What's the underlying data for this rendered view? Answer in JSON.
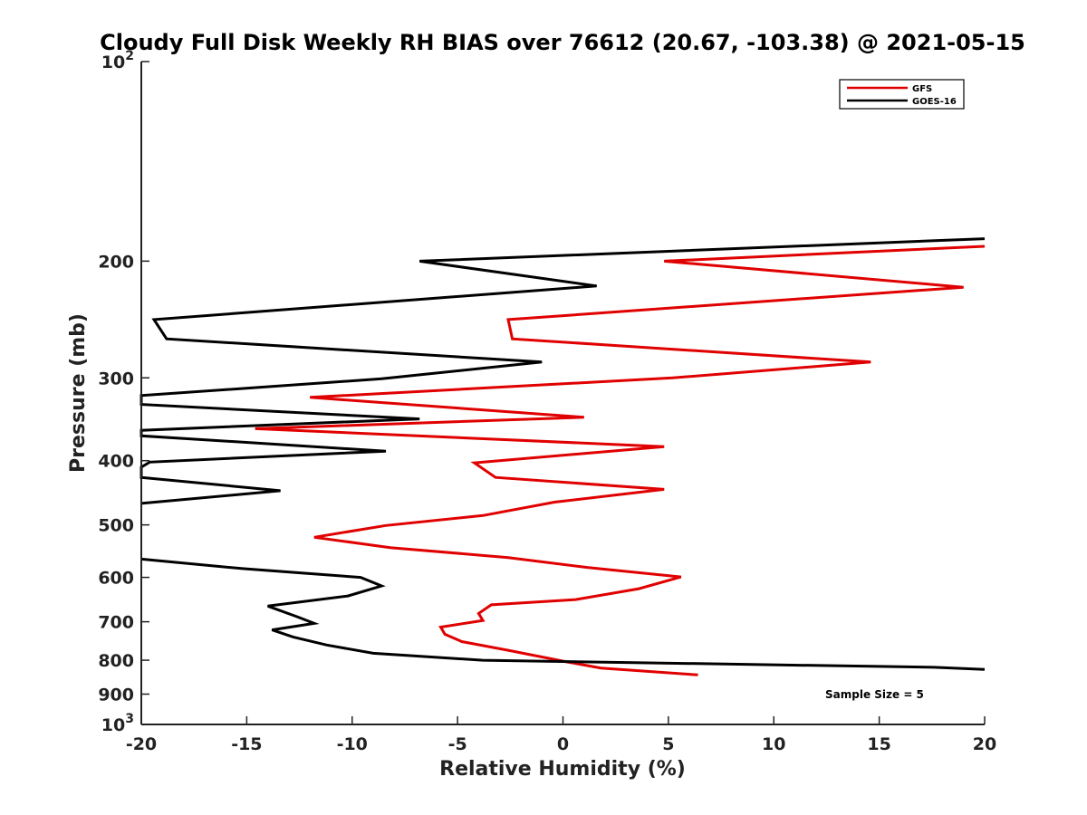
{
  "chart_data": {
    "type": "line",
    "title": "Cloudy Full Disk Weekly RH BIAS over 76612 (20.67, -103.38) @ 2021-05-15",
    "xlabel": "Relative Humidity (%)",
    "ylabel": "Pressure (mb)",
    "xlim": [
      -20,
      20
    ],
    "ylim": [
      100,
      1000
    ],
    "yscale": "log",
    "yreversed": true,
    "grid": false,
    "legend_position": "top-right",
    "x_ticks": [
      -20,
      -15,
      -10,
      -5,
      0,
      5,
      10,
      15,
      20
    ],
    "x_tick_labels": [
      "-20",
      "-15",
      "-10",
      "-5",
      "0",
      "5",
      "10",
      "15",
      "20"
    ],
    "y_ticks": [
      100,
      200,
      300,
      400,
      500,
      600,
      700,
      800,
      900,
      1000
    ],
    "y_tick_labels": [
      {
        "base": "10",
        "exp": "2"
      },
      {
        "base": "200",
        "exp": ""
      },
      {
        "base": "300",
        "exp": ""
      },
      {
        "base": "400",
        "exp": ""
      },
      {
        "base": "500",
        "exp": ""
      },
      {
        "base": "600",
        "exp": ""
      },
      {
        "base": "700",
        "exp": ""
      },
      {
        "base": "800",
        "exp": ""
      },
      {
        "base": "900",
        "exp": ""
      },
      {
        "base": "10",
        "exp": "3"
      }
    ],
    "series": [
      {
        "name": "GFS",
        "color": "#e00000",
        "points": [
          {
            "x": 20,
            "p": 190
          },
          {
            "x": 4.8,
            "p": 200
          },
          {
            "x": 19.0,
            "p": 219
          },
          {
            "x": -2.6,
            "p": 245
          },
          {
            "x": -2.4,
            "p": 262
          },
          {
            "x": 14.6,
            "p": 284
          },
          {
            "x": 5.2,
            "p": 300
          },
          {
            "x": -12.0,
            "p": 321
          },
          {
            "x": 1.0,
            "p": 344
          },
          {
            "x": -14.6,
            "p": 358
          },
          {
            "x": 4.8,
            "p": 381
          },
          {
            "x": -4.2,
            "p": 403
          },
          {
            "x": -3.2,
            "p": 424
          },
          {
            "x": 4.8,
            "p": 442
          },
          {
            "x": -0.4,
            "p": 462
          },
          {
            "x": -3.8,
            "p": 484
          },
          {
            "x": -8.4,
            "p": 501
          },
          {
            "x": -11.8,
            "p": 522
          },
          {
            "x": -8.2,
            "p": 541
          },
          {
            "x": -2.6,
            "p": 560
          },
          {
            "x": 1.2,
            "p": 580
          },
          {
            "x": 5.6,
            "p": 599
          },
          {
            "x": 3.6,
            "p": 624
          },
          {
            "x": 0.6,
            "p": 648
          },
          {
            "x": -3.4,
            "p": 660
          },
          {
            "x": -4.0,
            "p": 680
          },
          {
            "x": -3.8,
            "p": 697
          },
          {
            "x": -5.8,
            "p": 713
          },
          {
            "x": -5.6,
            "p": 731
          },
          {
            "x": -4.8,
            "p": 750
          },
          {
            "x": -2.6,
            "p": 773
          },
          {
            "x": 0.2,
            "p": 805
          },
          {
            "x": 1.8,
            "p": 822
          },
          {
            "x": 6.4,
            "p": 842
          }
        ]
      },
      {
        "name": "GOES-16",
        "color": "#000000",
        "points": [
          {
            "x": 20,
            "p": 185
          },
          {
            "x": -6.8,
            "p": 200
          },
          {
            "x": 1.6,
            "p": 218
          },
          {
            "x": -19.4,
            "p": 245
          },
          {
            "x": -18.8,
            "p": 262
          },
          {
            "x": -1.0,
            "p": 284
          },
          {
            "x": -8.6,
            "p": 301
          },
          {
            "x": -20.0,
            "p": 319
          },
          {
            "x": -20.0,
            "p": 329
          },
          {
            "x": -6.8,
            "p": 346
          },
          {
            "x": -20.0,
            "p": 360
          },
          {
            "x": -20.0,
            "p": 367
          },
          {
            "x": -8.4,
            "p": 387
          },
          {
            "x": -19.6,
            "p": 402
          },
          {
            "x": -20.0,
            "p": 409
          },
          {
            "x": -20.0,
            "p": 424
          },
          {
            "x": -13.4,
            "p": 444
          },
          {
            "x": -20.0,
            "p": 464
          },
          {
            "x": null,
            "p": 530
          },
          {
            "x": -20.0,
            "p": 563
          },
          {
            "x": -15.2,
            "p": 582
          },
          {
            "x": -9.6,
            "p": 600
          },
          {
            "x": -8.6,
            "p": 618
          },
          {
            "x": -10.2,
            "p": 640
          },
          {
            "x": -14.0,
            "p": 663
          },
          {
            "x": -12.6,
            "p": 688
          },
          {
            "x": -11.8,
            "p": 704
          },
          {
            "x": -13.8,
            "p": 720
          },
          {
            "x": -12.8,
            "p": 738
          },
          {
            "x": -11.2,
            "p": 759
          },
          {
            "x": -9.0,
            "p": 781
          },
          {
            "x": -3.8,
            "p": 800
          },
          {
            "x": 17.6,
            "p": 820
          },
          {
            "x": 20,
            "p": 826
          }
        ]
      }
    ],
    "legend": [
      {
        "name": "GFS",
        "color": "#e00000"
      },
      {
        "name": "GOES-16",
        "color": "#000000"
      }
    ],
    "annotations": [
      {
        "text": "Sample Size = 5",
        "position": "bottom-right"
      }
    ]
  }
}
